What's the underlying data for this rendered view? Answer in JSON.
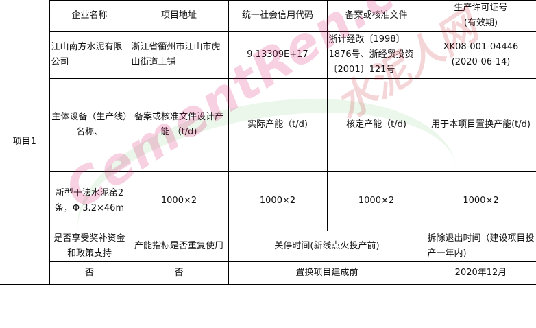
{
  "watermark": {
    "text": "CementRen.com",
    "brand": "水泥人网",
    "colors": [
      "#dc2878",
      "#c81e28"
    ]
  },
  "table": {
    "project_label": "项目1",
    "header": [
      "企业名称",
      "项目地址",
      "统一社会信用代码",
      "备案或核准文件",
      "生产许可证号",
      "(有效期)"
    ],
    "row1": [
      "江山南方水泥有限公司",
      "浙江省衢州市江山市虎山街道上铺",
      "9.13309E+17",
      "浙计经改〔1998〕1876号、浙经贸投资〔2001〕121号",
      "XK08-001-04446",
      "(2020-06-14)"
    ],
    "header2": [
      "主体设备（生产线）名称、",
      "备案或核准文件设计产能 （t/d)",
      "实际产能（t/d)",
      "核定产能（t/d)",
      "用于本项目置换产能(t/d)"
    ],
    "row2": [
      "新型干法水泥窑2条，Φ 3.2×46m",
      "1000×2",
      "1000×2",
      "1000×2",
      "1000×2"
    ],
    "header3": [
      "是否享受奖补资金和政策支持",
      "产能指标是否重复使用",
      "关停时间(新线点火投产前)",
      "拆除退出时间（建设项目投产一年内)"
    ],
    "row3": [
      "否",
      "否",
      "置换项目建成前",
      "2020年12月"
    ]
  }
}
